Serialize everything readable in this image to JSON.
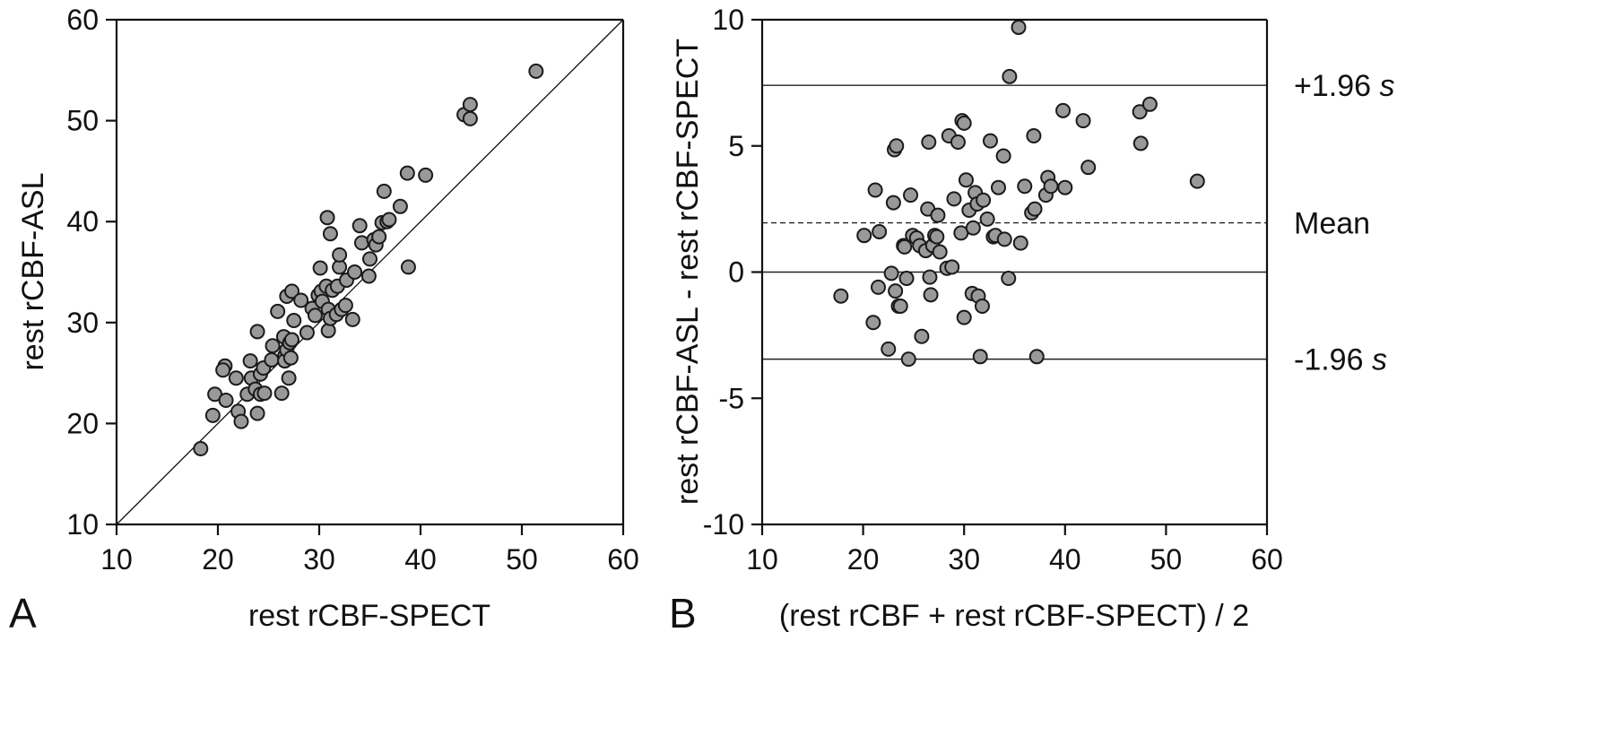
{
  "chart_data": [
    {
      "type": "scatter",
      "panel_label": "A",
      "xlabel": "rest rCBF-SPECT",
      "ylabel": "rest rCBF-ASL",
      "xlim": [
        10,
        60
      ],
      "ylim": [
        10,
        60
      ],
      "xticks": [
        10,
        20,
        30,
        40,
        50,
        60
      ],
      "yticks": [
        10,
        20,
        30,
        40,
        50,
        60
      ],
      "identity_line": true,
      "marker_color": "#999999",
      "points": [
        [
          18.3,
          17.5
        ],
        [
          19.5,
          20.8
        ],
        [
          19.7,
          22.9
        ],
        [
          20.8,
          22.3
        ],
        [
          20.7,
          25.7
        ],
        [
          20.5,
          25.3
        ],
        [
          21.8,
          24.5
        ],
        [
          22.0,
          21.2
        ],
        [
          22.3,
          20.2
        ],
        [
          22.9,
          22.9
        ],
        [
          23.2,
          26.2
        ],
        [
          23.3,
          24.5
        ],
        [
          23.7,
          23.4
        ],
        [
          23.9,
          21.0
        ],
        [
          23.9,
          29.1
        ],
        [
          24.2,
          24.9
        ],
        [
          24.2,
          22.9
        ],
        [
          24.6,
          23.0
        ],
        [
          24.5,
          25.5
        ],
        [
          25.3,
          26.3
        ],
        [
          25.4,
          27.7
        ],
        [
          25.9,
          31.1
        ],
        [
          26.3,
          23.0
        ],
        [
          26.5,
          28.6
        ],
        [
          26.6,
          26.7
        ],
        [
          26.6,
          26.2
        ],
        [
          26.8,
          27.3
        ],
        [
          26.8,
          32.6
        ],
        [
          27.0,
          24.5
        ],
        [
          27.1,
          28.0
        ],
        [
          27.2,
          26.5
        ],
        [
          27.3,
          33.1
        ],
        [
          27.3,
          28.3
        ],
        [
          27.5,
          30.2
        ],
        [
          28.2,
          32.2
        ],
        [
          28.8,
          29.0
        ],
        [
          29.3,
          31.4
        ],
        [
          29.6,
          30.7
        ],
        [
          29.9,
          32.7
        ],
        [
          30.1,
          35.4
        ],
        [
          30.2,
          33.1
        ],
        [
          30.3,
          32.1
        ],
        [
          30.7,
          33.6
        ],
        [
          30.8,
          40.4
        ],
        [
          30.9,
          31.3
        ],
        [
          30.9,
          29.2
        ],
        [
          31.1,
          38.8
        ],
        [
          31.1,
          30.4
        ],
        [
          31.3,
          33.2
        ],
        [
          31.7,
          30.8
        ],
        [
          31.8,
          33.6
        ],
        [
          32.0,
          35.5
        ],
        [
          32.0,
          36.7
        ],
        [
          32.2,
          31.3
        ],
        [
          32.6,
          31.7
        ],
        [
          32.7,
          34.2
        ],
        [
          33.3,
          30.3
        ],
        [
          33.5,
          35.0
        ],
        [
          34.0,
          39.6
        ],
        [
          34.2,
          37.9
        ],
        [
          34.9,
          34.6
        ],
        [
          35.0,
          36.3
        ],
        [
          35.4,
          38.2
        ],
        [
          35.6,
          37.7
        ],
        [
          35.9,
          38.5
        ],
        [
          36.2,
          39.9
        ],
        [
          36.4,
          43.0
        ],
        [
          36.7,
          40.0
        ],
        [
          36.9,
          40.2
        ],
        [
          38.0,
          41.5
        ],
        [
          38.7,
          44.8
        ],
        [
          38.8,
          35.5
        ],
        [
          40.5,
          44.6
        ],
        [
          44.3,
          50.6
        ],
        [
          44.9,
          50.2
        ],
        [
          44.9,
          51.6
        ],
        [
          51.4,
          54.9
        ]
      ]
    },
    {
      "type": "scatter",
      "panel_label": "B",
      "xlabel": "(rest rCBF + rest rCBF-SPECT) / 2",
      "ylabel": "rest rCBF-ASL - rest rCBF-SPECT",
      "xlim": [
        10,
        60
      ],
      "ylim": [
        -10,
        10
      ],
      "xticks": [
        10,
        20,
        30,
        40,
        50,
        60
      ],
      "yticks": [
        -10,
        -5,
        0,
        5,
        10
      ],
      "marker_color": "#999999",
      "reference_lines": [
        {
          "y": 7.4,
          "style": "solid",
          "label_main": "+1.96 ",
          "label_ital": "s"
        },
        {
          "y": 1.95,
          "style": "dashed",
          "label_main": "Mean",
          "label_ital": ""
        },
        {
          "y": 0,
          "style": "solid",
          "label_main": "",
          "label_ital": ""
        },
        {
          "y": -3.45,
          "style": "solid",
          "label_main": "-1.96 ",
          "label_ital": "s"
        }
      ],
      "points": [
        [
          17.8,
          -0.95
        ],
        [
          20.1,
          1.45
        ],
        [
          21.0,
          -2.0
        ],
        [
          21.2,
          3.25
        ],
        [
          21.5,
          -0.6
        ],
        [
          21.6,
          1.6
        ],
        [
          22.5,
          -3.05
        ],
        [
          22.8,
          -0.05
        ],
        [
          23.0,
          2.75
        ],
        [
          23.1,
          4.85
        ],
        [
          23.2,
          -0.75
        ],
        [
          23.3,
          5.0
        ],
        [
          23.5,
          -1.35
        ],
        [
          23.7,
          -1.35
        ],
        [
          24.0,
          1.05
        ],
        [
          24.1,
          1.0
        ],
        [
          24.3,
          -0.25
        ],
        [
          24.5,
          -3.45
        ],
        [
          24.7,
          3.05
        ],
        [
          24.9,
          1.45
        ],
        [
          25.3,
          1.35
        ],
        [
          25.6,
          1.05
        ],
        [
          25.8,
          -2.55
        ],
        [
          26.2,
          0.85
        ],
        [
          26.4,
          2.5
        ],
        [
          26.5,
          5.15
        ],
        [
          26.6,
          -0.2
        ],
        [
          26.7,
          -0.9
        ],
        [
          26.9,
          1.05
        ],
        [
          27.1,
          1.45
        ],
        [
          27.3,
          1.4
        ],
        [
          27.4,
          2.25
        ],
        [
          27.6,
          0.8
        ],
        [
          28.3,
          0.15
        ],
        [
          28.5,
          5.4
        ],
        [
          28.8,
          0.2
        ],
        [
          29.0,
          2.9
        ],
        [
          29.4,
          5.15
        ],
        [
          29.7,
          1.55
        ],
        [
          29.8,
          6.0
        ],
        [
          30.0,
          5.9
        ],
        [
          30.0,
          -1.8
        ],
        [
          30.2,
          3.65
        ],
        [
          30.5,
          2.45
        ],
        [
          30.8,
          -0.85
        ],
        [
          30.9,
          1.75
        ],
        [
          31.1,
          3.15
        ],
        [
          31.3,
          2.7
        ],
        [
          31.4,
          -0.95
        ],
        [
          31.6,
          -3.35
        ],
        [
          31.8,
          -1.35
        ],
        [
          31.9,
          2.85
        ],
        [
          32.3,
          2.1
        ],
        [
          32.6,
          5.2
        ],
        [
          32.9,
          1.4
        ],
        [
          33.1,
          1.45
        ],
        [
          33.4,
          3.35
        ],
        [
          33.9,
          4.6
        ],
        [
          34.0,
          1.3
        ],
        [
          34.5,
          7.75
        ],
        [
          34.4,
          -0.25
        ],
        [
          35.4,
          9.7
        ],
        [
          35.6,
          1.15
        ],
        [
          36.0,
          3.4
        ],
        [
          36.7,
          2.35
        ],
        [
          36.9,
          5.4
        ],
        [
          37.0,
          2.5
        ],
        [
          37.2,
          -3.35
        ],
        [
          38.1,
          3.05
        ],
        [
          38.3,
          3.75
        ],
        [
          38.6,
          3.4
        ],
        [
          39.8,
          6.4
        ],
        [
          40.0,
          3.35
        ],
        [
          41.8,
          6.0
        ],
        [
          42.3,
          4.15
        ],
        [
          47.4,
          6.35
        ],
        [
          47.5,
          5.1
        ],
        [
          48.4,
          6.65
        ],
        [
          53.1,
          3.6
        ]
      ]
    }
  ]
}
